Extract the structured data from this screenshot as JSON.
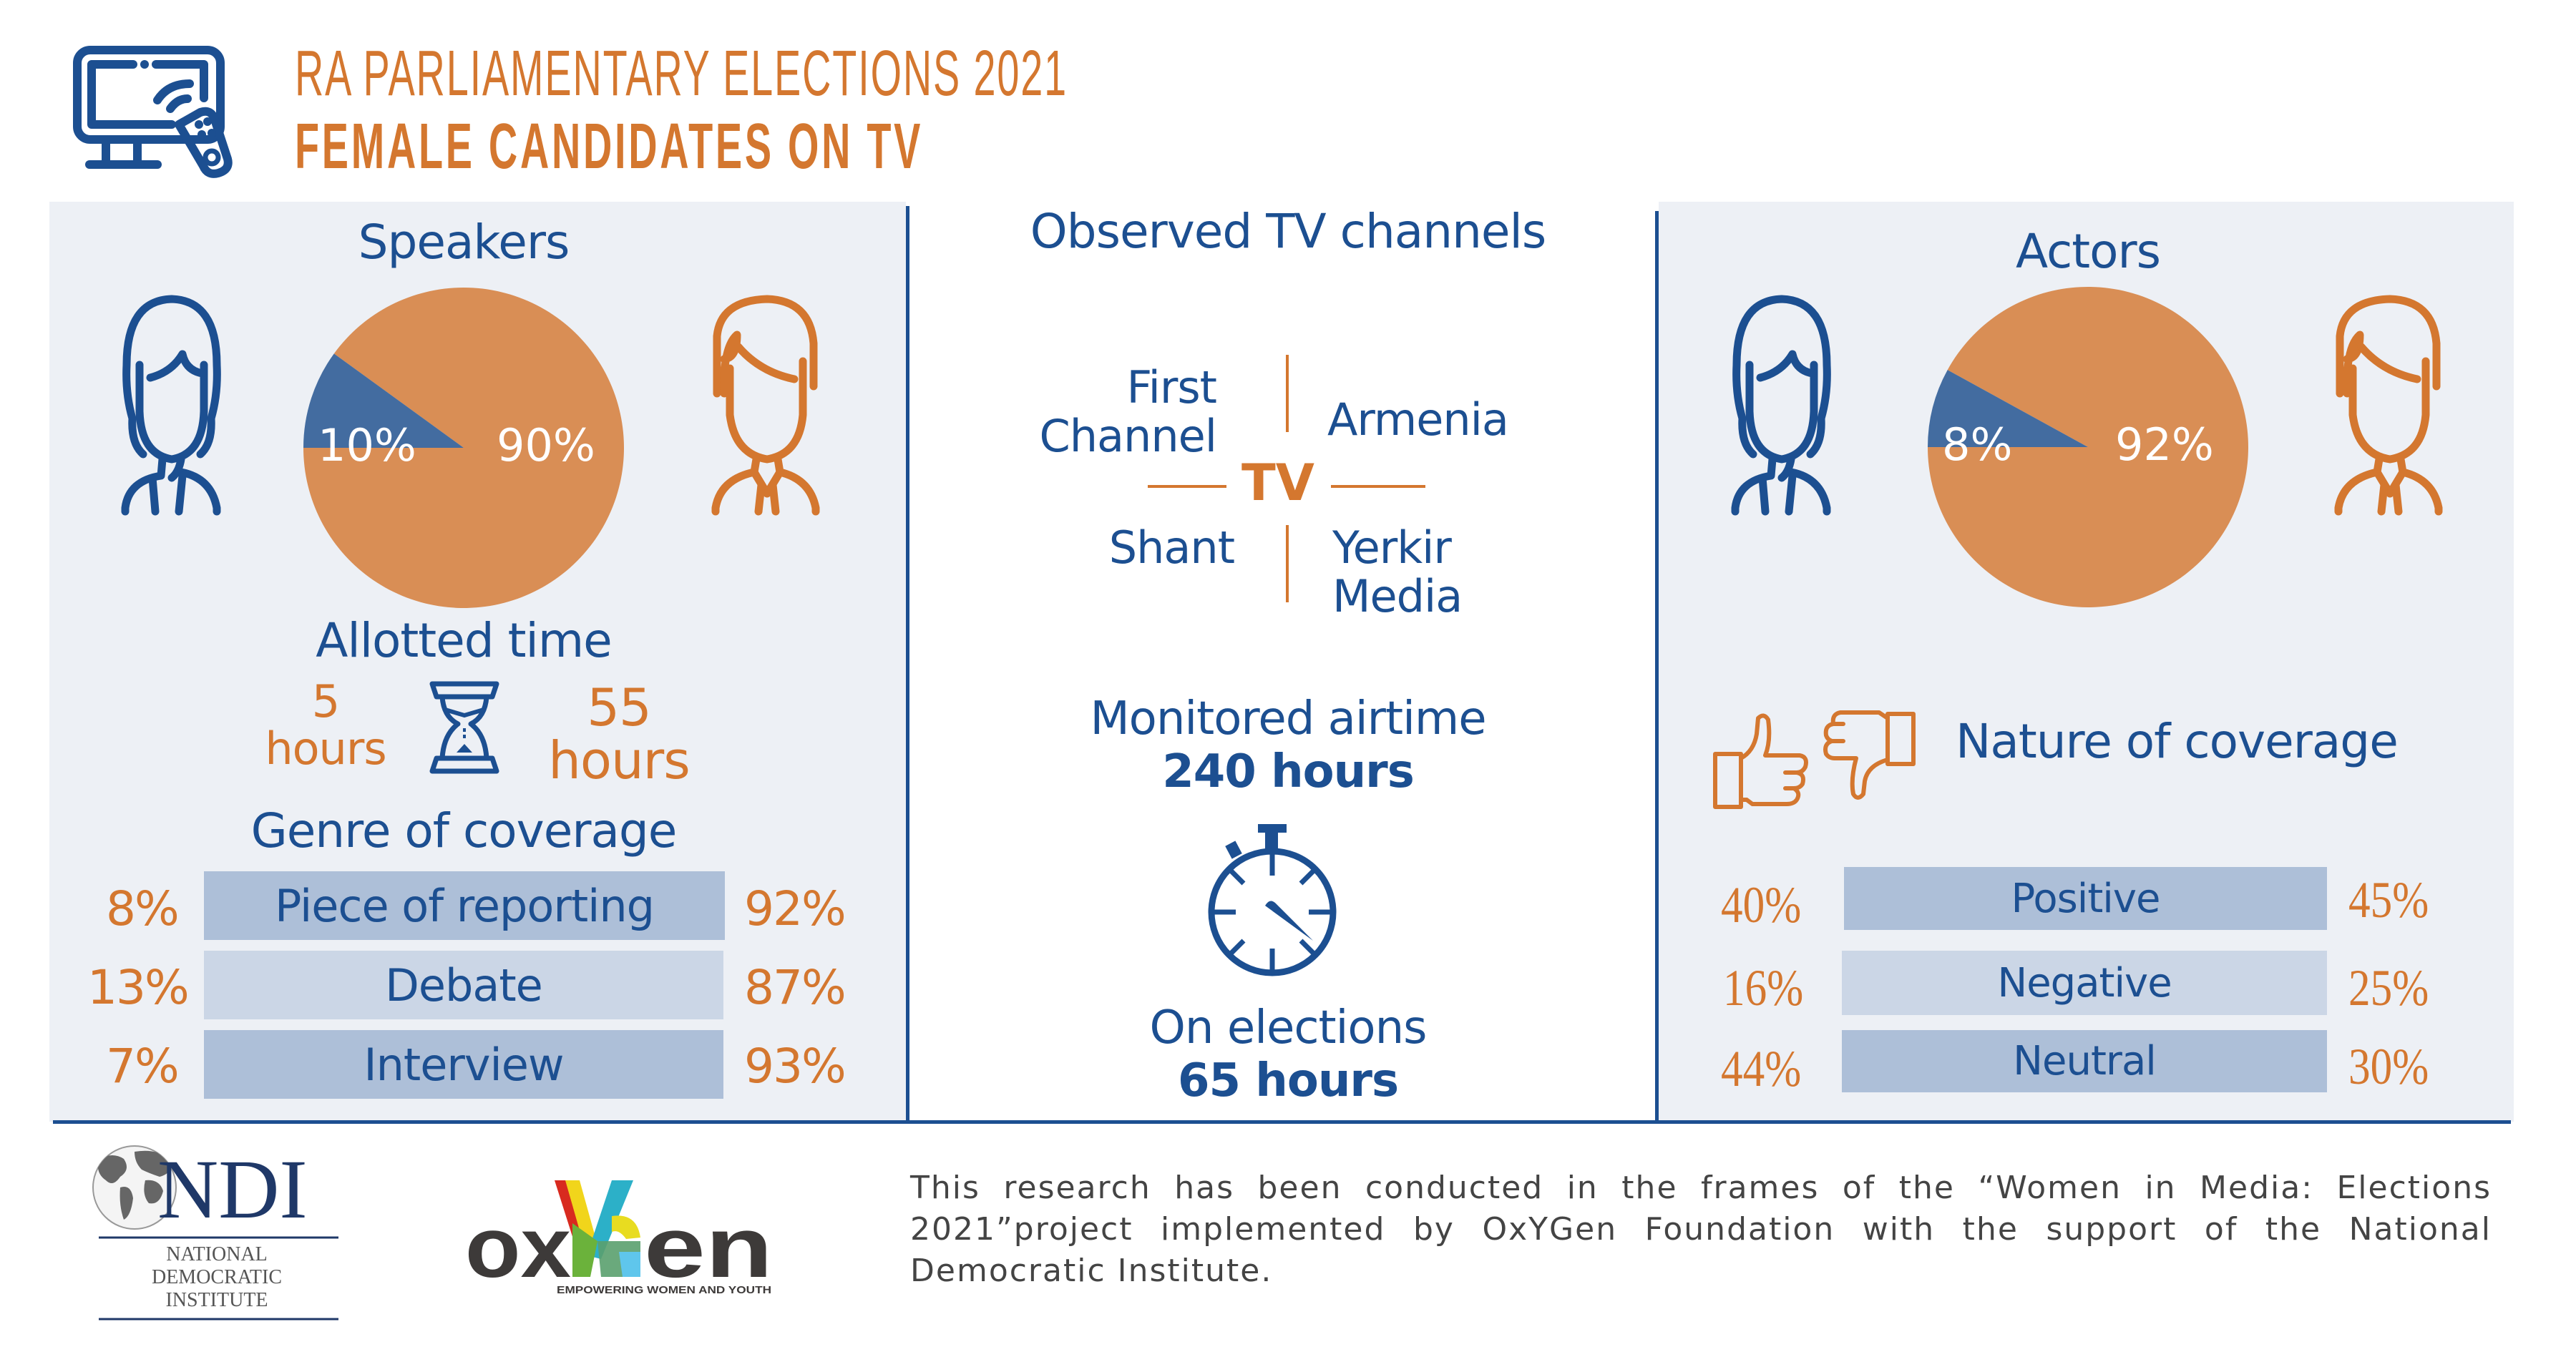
{
  "header": {
    "title_line1": "RA PARLIAMENTARY ELECTIONS 2021",
    "title_line2": "FEMALE CANDIDATES ON TV",
    "icon": "tv-remote-icon"
  },
  "speakers": {
    "heading": "Speakers",
    "female_pct_label": "10%",
    "male_pct_label": "90%",
    "allotted_time": {
      "heading": "Allotted time",
      "female_value": "5",
      "female_unit": "hours",
      "male_value": "55",
      "male_unit": "hours",
      "icon": "hourglass-icon"
    },
    "genre": {
      "heading": "Genre of coverage",
      "rows": [
        {
          "label": "Piece of reporting",
          "female": "8%",
          "male": "92%"
        },
        {
          "label": "Debate",
          "female": "13%",
          "male": "87%"
        },
        {
          "label": "Interview",
          "female": "7%",
          "male": "93%"
        }
      ]
    }
  },
  "channels": {
    "heading": "Observed TV channels",
    "center_label": "TV",
    "items": [
      {
        "line1": "First",
        "line2": "Channel"
      },
      {
        "line1": "Armenia",
        "line2": ""
      },
      {
        "line1": "Shant",
        "line2": ""
      },
      {
        "line1": "Yerkir",
        "line2": "Media"
      }
    ],
    "monitored_label": "Monitored airtime",
    "monitored_value": "240 hours",
    "elections_label": "On elections",
    "elections_value": "65 hours",
    "icon": "stopwatch-icon"
  },
  "actors": {
    "heading": "Actors",
    "female_pct_label": "8%",
    "male_pct_label": "92%",
    "nature": {
      "heading": "Nature of coverage",
      "rows": [
        {
          "label": "Positive",
          "female": "40%",
          "male": "45%"
        },
        {
          "label": "Negative",
          "female": "16%",
          "male": "25%"
        },
        {
          "label": "Neutral",
          "female": "44%",
          "male": "30%"
        }
      ]
    }
  },
  "footer": {
    "ndi_logo_text": "NDI",
    "ndi_full_line1": "NATIONAL",
    "ndi_full_line2": "DEMOCRATIC",
    "ndi_full_line3": "INSTITUTE",
    "oxygen_logo_text_left": "ox",
    "oxygen_logo_text_y": "Y",
    "oxygen_logo_text_g": "G",
    "oxygen_logo_text_right": "en",
    "oxygen_tagline": "EMPOWERING WOMEN AND YOUTH",
    "note": "This research has been conducted in the frames of the “Women in Media: Elections 2021”project implemented by OxYGen Foundation with the support of the National Democratic Institute."
  },
  "colors": {
    "primary_blue": "#1c4f91",
    "accent_orange": "#d4772f",
    "pie_orange": "#d98e55",
    "pie_blue": "#436ca0",
    "panel_bg": "#edf0f5",
    "bar_dark": "#adbfd8",
    "bar_light": "#cbd6e6"
  },
  "chart_data": [
    {
      "type": "pie",
      "title": "Speakers",
      "categories": [
        "Female",
        "Male"
      ],
      "values": [
        10,
        90
      ],
      "labels": [
        "10%",
        "90%"
      ],
      "colors": [
        "#436ca0",
        "#d98e55"
      ]
    },
    {
      "type": "pie",
      "title": "Actors",
      "categories": [
        "Female",
        "Male"
      ],
      "values": [
        8,
        92
      ],
      "labels": [
        "8%",
        "92%"
      ],
      "colors": [
        "#436ca0",
        "#d98e55"
      ]
    },
    {
      "type": "table",
      "title": "Genre of coverage",
      "columns": [
        "Genre",
        "Female",
        "Male"
      ],
      "rows": [
        [
          "Piece of reporting",
          8,
          92
        ],
        [
          "Debate",
          13,
          87
        ],
        [
          "Interview",
          7,
          93
        ]
      ]
    },
    {
      "type": "table",
      "title": "Nature of coverage",
      "columns": [
        "Nature",
        "Female",
        "Male"
      ],
      "rows": [
        [
          "Positive",
          40,
          45
        ],
        [
          "Negative",
          16,
          25
        ],
        [
          "Neutral",
          44,
          30
        ]
      ]
    }
  ]
}
